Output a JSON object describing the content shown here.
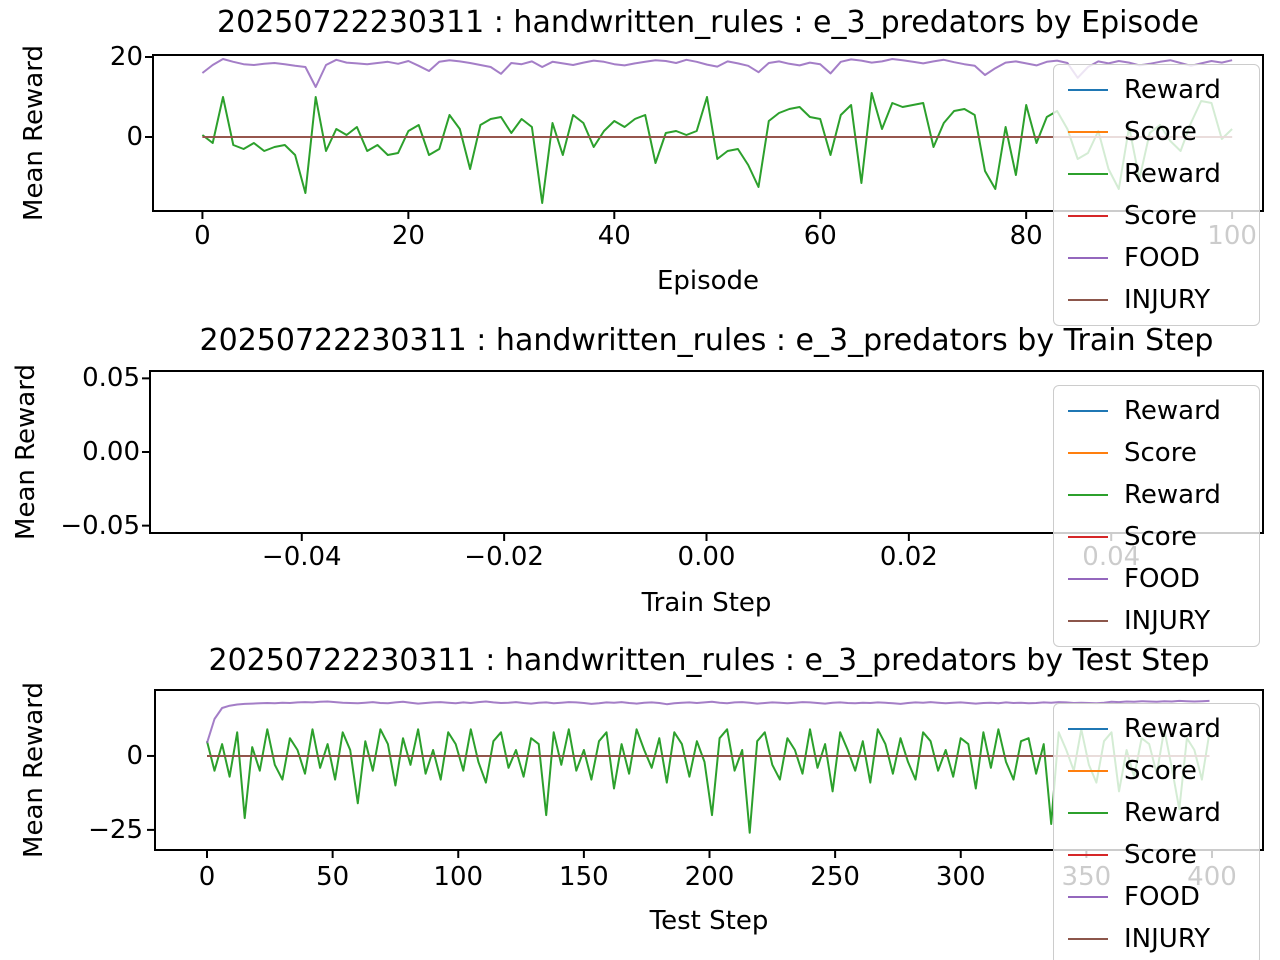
{
  "figure": {
    "background": "#ffffff"
  },
  "chart_data": [
    {
      "type": "line",
      "title": "20250722230311 : handwritten_rules : e_3_predators by Episode",
      "xlabel": "Episode",
      "ylabel": "Mean Reward",
      "xlim": [
        -4.8,
        103.0
      ],
      "ylim": [
        -18.5,
        20.5
      ],
      "grid": false,
      "legend_position": "right",
      "xticks": {
        "values": [
          0,
          20,
          40,
          60,
          80,
          100
        ],
        "labels": [
          "0",
          "20",
          "40",
          "60",
          "80",
          "100"
        ]
      },
      "yticks": {
        "values": [
          20,
          0
        ],
        "labels": [
          "20",
          "0"
        ]
      },
      "legend": [
        {
          "label": "Reward",
          "color": "#1f77b4"
        },
        {
          "label": "Score",
          "color": "#ff7f0e"
        },
        {
          "label": "Reward",
          "color": "#2ca02c"
        },
        {
          "label": "Score",
          "color": "#d62728"
        },
        {
          "label": "FOOD",
          "color": "#9467bd"
        },
        {
          "label": "INJURY",
          "color": "#8c564b"
        }
      ],
      "series": [
        {
          "name": "Reward",
          "color": "#1f77b4",
          "x_start": 0,
          "x_step": 1,
          "values": []
        },
        {
          "name": "Score",
          "color": "#ff7f0e",
          "x_start": 0,
          "x_step": 1,
          "values": []
        },
        {
          "name": "Reward",
          "color": "#2ca02c",
          "x_start": 0,
          "x_step": 1,
          "values": [
            0.5,
            -1.5,
            10,
            -2,
            -3,
            -1.5,
            -3.5,
            -2.5,
            -2,
            -4.5,
            -14,
            10,
            -3.5,
            2,
            0.5,
            2.5,
            -3.5,
            -2,
            -4.5,
            -4,
            1.5,
            3,
            -4.5,
            -3,
            5.5,
            2,
            -8,
            3,
            4.5,
            5,
            1,
            4.5,
            2.5,
            -16.5,
            3.5,
            -4.5,
            5.5,
            3.5,
            -2.5,
            1.5,
            4,
            2.5,
            4.5,
            5.5,
            -6.5,
            1,
            1.5,
            0.5,
            1.5,
            10,
            -5.5,
            -3.5,
            -3,
            -7,
            -12.5,
            4,
            6,
            7,
            7.5,
            5,
            4.5,
            -4.5,
            5.5,
            8,
            -11.5,
            11,
            2,
            8.5,
            7.5,
            8,
            8.5,
            -2.5,
            3.5,
            6.5,
            7,
            5.5,
            -8.5,
            -13,
            2.5,
            -9.5,
            8,
            -1.5,
            5,
            6.5,
            2,
            -5.5,
            -4,
            1.5,
            -8,
            -13,
            2.5,
            -10.5,
            1,
            3,
            -1,
            -3.5,
            3.5,
            9,
            8.5,
            -0.5,
            2
          ]
        },
        {
          "name": "Score",
          "color": "#d62728",
          "const": 0,
          "x_range": [
            0,
            100
          ]
        },
        {
          "name": "FOOD",
          "color": "#9467bd",
          "opacity": 0.85,
          "x_start": 0,
          "x_step": 1,
          "values": [
            16,
            18,
            19.5,
            18.8,
            18.2,
            18,
            18.3,
            18.5,
            18.2,
            17.8,
            17.5,
            12.5,
            18,
            19.3,
            18.6,
            18.4,
            18.2,
            18.5,
            18.8,
            18.3,
            19,
            17.8,
            16.5,
            18.8,
            19.2,
            18.9,
            18.5,
            18,
            17.5,
            15.8,
            18.5,
            18.2,
            18.9,
            17.5,
            18.8,
            18.4,
            18,
            18.6,
            19.1,
            18.8,
            18.2,
            17.9,
            18.4,
            18.8,
            19.2,
            19,
            18.5,
            19.3,
            18.8,
            18.1,
            17.6,
            18.9,
            18.4,
            17.8,
            16.2,
            18.5,
            18.9,
            18.3,
            17.9,
            18.6,
            18.2,
            15.9,
            18.8,
            19.4,
            19.1,
            18.6,
            18.9,
            19.5,
            19.2,
            18.8,
            18.4,
            18.9,
            19.3,
            18.7,
            18.2,
            17.8,
            15.5,
            17.2,
            18.6,
            18.9,
            18.4,
            17.9,
            18.8,
            19.1,
            18.5,
            14.8,
            17.5,
            18.9,
            18.4,
            19,
            18.6,
            17.9,
            18.3,
            18.8,
            19.2,
            18.5,
            17.8,
            18.4,
            19,
            18.6,
            19.2
          ]
        },
        {
          "name": "INJURY",
          "color": "#8c564b",
          "const": 0,
          "x_range": [
            0,
            100
          ]
        }
      ]
    },
    {
      "type": "line",
      "title": "20250722230311 : handwritten_rules : e_3_predators by Train Step",
      "xlabel": "Train Step",
      "ylabel": "Mean Reward",
      "xlim": [
        -0.055,
        0.055
      ],
      "ylim": [
        -0.055,
        0.055
      ],
      "grid": false,
      "legend_position": "right",
      "xticks": {
        "values": [
          -0.04,
          -0.02,
          0,
          0.02,
          0.04
        ],
        "labels": [
          "−0.04",
          "−0.02",
          "0.00",
          "0.02",
          "0.04"
        ]
      },
      "yticks": {
        "values": [
          0.05,
          0,
          -0.05
        ],
        "labels": [
          "0.05",
          "0.00",
          "−0.05"
        ]
      },
      "legend": [
        {
          "label": "Reward",
          "color": "#1f77b4"
        },
        {
          "label": "Score",
          "color": "#ff7f0e"
        },
        {
          "label": "Reward",
          "color": "#2ca02c"
        },
        {
          "label": "Score",
          "color": "#d62728"
        },
        {
          "label": "FOOD",
          "color": "#9467bd"
        },
        {
          "label": "INJURY",
          "color": "#8c564b"
        }
      ],
      "series": [
        {
          "name": "Reward",
          "color": "#1f77b4",
          "values": []
        },
        {
          "name": "Score",
          "color": "#ff7f0e",
          "values": []
        },
        {
          "name": "Reward",
          "color": "#2ca02c",
          "values": []
        },
        {
          "name": "Score",
          "color": "#d62728",
          "values": []
        },
        {
          "name": "FOOD",
          "color": "#9467bd",
          "values": []
        },
        {
          "name": "INJURY",
          "color": "#8c564b",
          "values": []
        }
      ]
    },
    {
      "type": "line",
      "title": "20250722230311 : handwritten_rules : e_3_predators by Test Step",
      "xlabel": "Test Step",
      "ylabel": "Mean Reward",
      "xlim": [
        -20.7,
        420.3
      ],
      "ylim": [
        -31.8,
        22.3
      ],
      "grid": false,
      "legend_position": "right",
      "xticks": {
        "values": [
          0,
          50,
          100,
          150,
          200,
          250,
          300,
          350,
          400
        ],
        "labels": [
          "0",
          "50",
          "100",
          "150",
          "200",
          "250",
          "300",
          "350",
          "400"
        ]
      },
      "yticks": {
        "values": [
          0,
          -25
        ],
        "labels": [
          "0",
          "−25"
        ]
      },
      "legend": [
        {
          "label": "Reward",
          "color": "#1f77b4"
        },
        {
          "label": "Score",
          "color": "#ff7f0e"
        },
        {
          "label": "Reward",
          "color": "#2ca02c"
        },
        {
          "label": "Score",
          "color": "#d62728"
        },
        {
          "label": "FOOD",
          "color": "#9467bd"
        },
        {
          "label": "INJURY",
          "color": "#8c564b"
        }
      ],
      "series": [
        {
          "name": "Reward",
          "color": "#1f77b4",
          "x_start": 0,
          "x_step": 3,
          "values": []
        },
        {
          "name": "Score",
          "color": "#ff7f0e",
          "x_start": 0,
          "x_step": 3,
          "values": []
        },
        {
          "name": "Reward",
          "color": "#2ca02c",
          "x_start": 0,
          "x_step": 3,
          "values": [
            5,
            -5,
            4,
            -7,
            8,
            -21,
            3,
            -5,
            9,
            -3,
            -8,
            6,
            2,
            -6,
            9,
            -4,
            4,
            -8,
            8,
            2,
            -16,
            5,
            -5,
            9,
            4,
            -10,
            6,
            -3,
            9,
            -6,
            2,
            -8,
            8,
            4,
            -5,
            9,
            -2,
            -9,
            5,
            8,
            -4,
            2,
            -7,
            6,
            4,
            -20,
            8,
            -3,
            9,
            -5,
            2,
            -8,
            5,
            8,
            -11,
            4,
            -6,
            9,
            2,
            -4,
            6,
            -9,
            8,
            4,
            -7,
            5,
            -2,
            -20,
            6,
            9,
            -5,
            2,
            -26,
            5,
            8,
            -3,
            -8,
            6,
            2,
            -6,
            9,
            -4,
            4,
            -12,
            8,
            2,
            -5,
            5,
            -9,
            9,
            4,
            -6,
            6,
            -2,
            -8,
            8,
            5,
            -5,
            2,
            -7,
            6,
            4,
            -11,
            8,
            -4,
            9,
            -2,
            -8,
            5,
            6,
            -6,
            4,
            -23,
            8,
            2,
            -5,
            9,
            -3,
            -9,
            5,
            8,
            -12,
            2,
            -7,
            6,
            4,
            -6,
            9,
            -4,
            -18,
            6,
            2,
            -8,
            8
          ]
        },
        {
          "name": "Score",
          "color": "#d62728",
          "const": 0,
          "x_range": [
            0,
            399
          ]
        },
        {
          "name": "FOOD",
          "color": "#9467bd",
          "opacity": 0.85,
          "x_start": 0,
          "x_step": 3,
          "values": [
            4.4,
            12.5,
            16.2,
            17,
            17.4,
            17.6,
            17.7,
            17.8,
            17.9,
            17.8,
            18,
            17.9,
            18.1,
            18.2,
            18.1,
            18.3,
            18.4,
            18.2,
            18,
            17.9,
            17.8,
            18,
            18.2,
            17.9,
            17.8,
            18.1,
            18.3,
            18,
            17.7,
            17.9,
            18.1,
            18.2,
            18,
            17.8,
            18.1,
            17.9,
            18.2,
            18.4,
            18.1,
            17.9,
            18,
            18.2,
            17.9,
            17.7,
            18,
            18.1,
            17.8,
            18,
            18.2,
            18.1,
            17.9,
            17.6,
            17.8,
            18.1,
            18,
            18.2,
            17.9,
            17.7,
            18,
            18.1,
            17.9,
            17.5,
            17.8,
            18,
            18.1,
            17.9,
            18.1,
            18.3,
            18,
            17.8,
            18.1,
            18.2,
            18,
            17.7,
            17.9,
            18.1,
            18,
            17.8,
            18,
            18.2,
            18.1,
            17.9,
            17.7,
            18,
            18.1,
            17.9,
            17.8,
            18,
            17.9,
            18.1,
            18,
            17.8,
            17.6,
            17.9,
            18.1,
            18,
            18.2,
            18,
            17.8,
            18,
            18.1,
            17.9,
            17.7,
            17.9,
            18,
            17.8,
            18.1,
            17.9,
            18,
            17.8,
            17.9,
            18.1,
            18,
            18.2,
            18.1,
            17.9,
            18,
            17.9,
            17.8,
            18,
            18.3,
            18.2,
            18.4,
            18.3,
            18.5,
            18.4,
            18.3,
            18.5,
            18.4,
            18.6,
            18.5,
            18.4,
            18.5,
            18.6
          ]
        },
        {
          "name": "INJURY",
          "color": "#8c564b",
          "const": 0,
          "x_range": [
            0,
            399
          ]
        }
      ]
    }
  ]
}
